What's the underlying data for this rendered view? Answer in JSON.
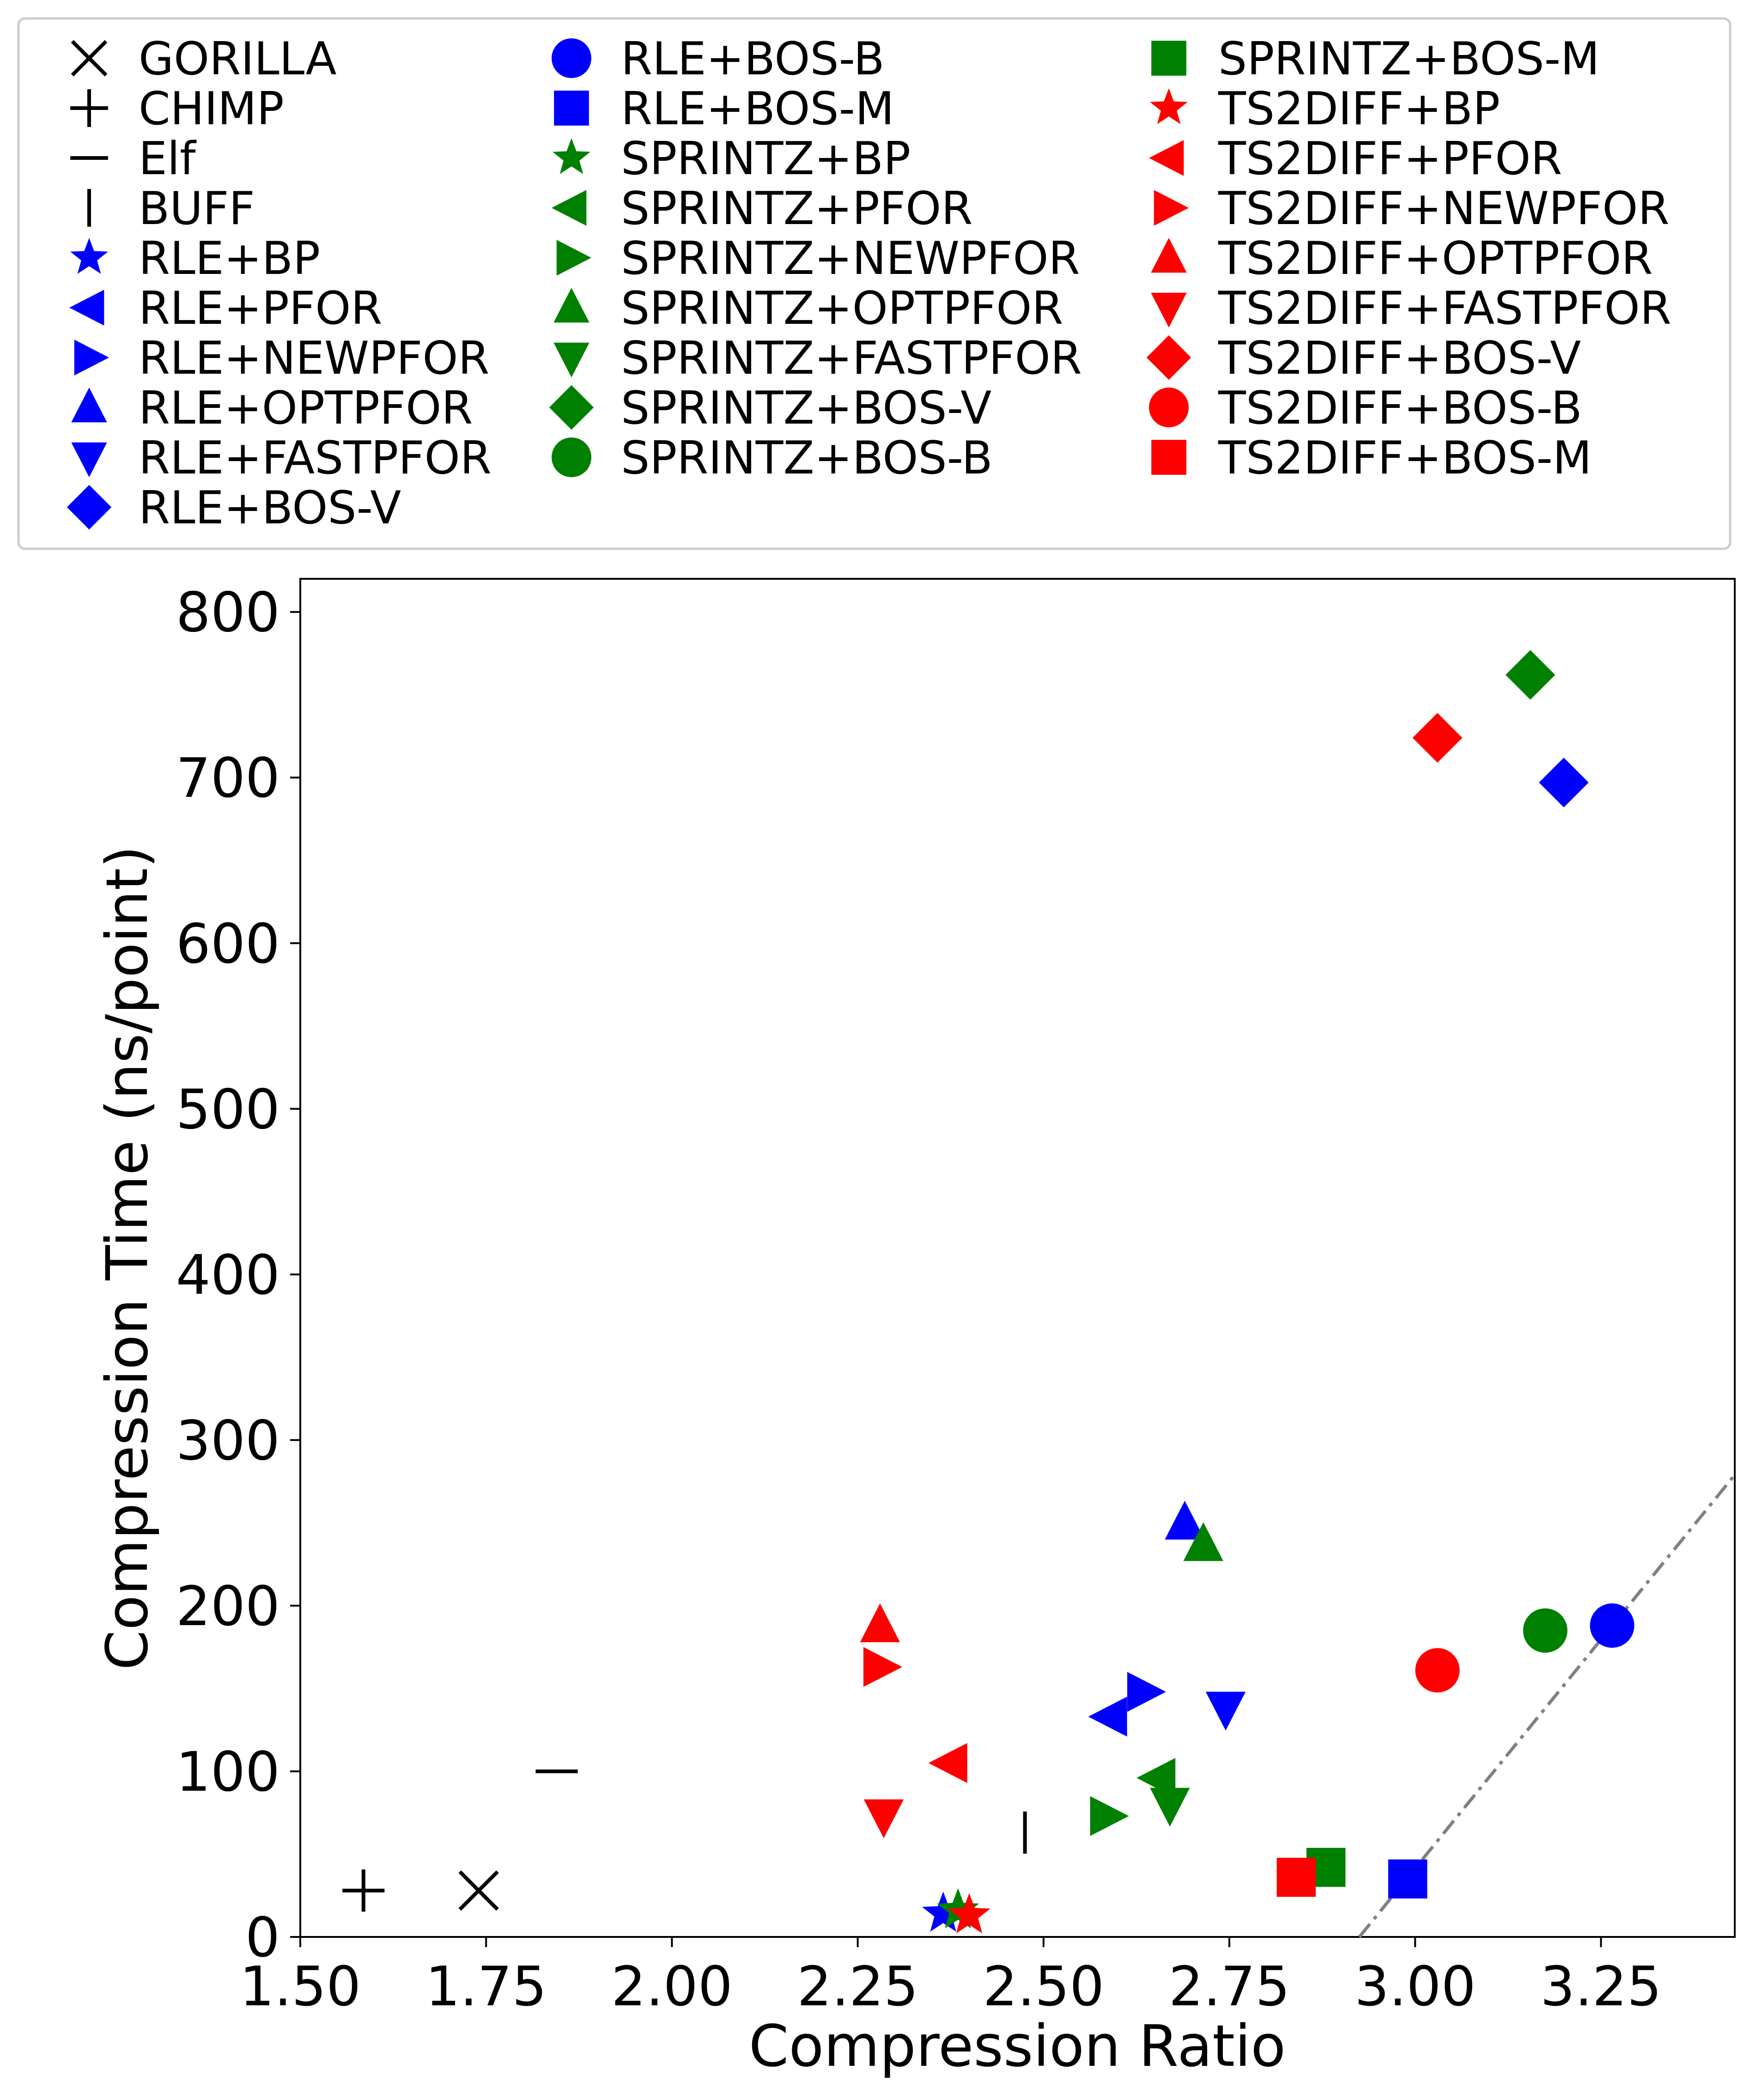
{
  "chart_data": {
    "type": "scatter",
    "title": "",
    "xlabel": "Compression Ratio",
    "ylabel": "Compression Time (ns/point)",
    "xlim": [
      1.5,
      3.43
    ],
    "ylim": [
      0,
      820
    ],
    "xticks": [
      1.5,
      1.75,
      2.0,
      2.25,
      2.5,
      2.75,
      3.0,
      3.25
    ],
    "xtick_labels": [
      "1.50",
      "1.75",
      "2.00",
      "2.25",
      "2.50",
      "2.75",
      "3.00",
      "3.25"
    ],
    "yticks": [
      0,
      100,
      200,
      300,
      400,
      500,
      600,
      700,
      800
    ],
    "ytick_labels": [
      "0",
      "100",
      "200",
      "300",
      "400",
      "500",
      "600",
      "700",
      "800"
    ],
    "grid": false,
    "legend_position": "top",
    "reference_line": {
      "style": "dash-dot",
      "color": "#808080",
      "points": [
        [
          2.925,
          0
        ],
        [
          3.45,
          290
        ]
      ]
    },
    "series": [
      {
        "name": "GORILLA",
        "marker": "x",
        "color": "#000000",
        "points": [
          [
            1.74,
            28
          ]
        ]
      },
      {
        "name": "CHIMP",
        "marker": "plus",
        "color": "#000000",
        "points": [
          [
            1.585,
            28
          ]
        ]
      },
      {
        "name": "Elf",
        "marker": "hline",
        "color": "#000000",
        "points": [
          [
            1.845,
            100
          ]
        ]
      },
      {
        "name": "BUFF",
        "marker": "vline",
        "color": "#000000",
        "points": [
          [
            2.475,
            63
          ]
        ]
      },
      {
        "name": "RLE+BP",
        "marker": "star",
        "color": "#0000ff",
        "points": [
          [
            2.365,
            14
          ]
        ]
      },
      {
        "name": "RLE+PFOR",
        "marker": "tri-left",
        "color": "#0000ff",
        "points": [
          [
            2.59,
            133
          ]
        ]
      },
      {
        "name": "RLE+NEWPFOR",
        "marker": "tri-right",
        "color": "#0000ff",
        "points": [
          [
            2.635,
            148
          ]
        ]
      },
      {
        "name": "RLE+OPTPFOR",
        "marker": "tri-up",
        "color": "#0000ff",
        "points": [
          [
            2.69,
            250
          ]
        ]
      },
      {
        "name": "RLE+FASTPFOR",
        "marker": "tri-down",
        "color": "#0000ff",
        "points": [
          [
            2.745,
            138
          ]
        ]
      },
      {
        "name": "RLE+BOS-V",
        "marker": "diamond",
        "color": "#0000ff",
        "points": [
          [
            3.2,
            697
          ]
        ]
      },
      {
        "name": "RLE+BOS-B",
        "marker": "circle",
        "color": "#0000ff",
        "points": [
          [
            3.265,
            188
          ]
        ]
      },
      {
        "name": "RLE+BOS-M",
        "marker": "square",
        "color": "#0000ff",
        "points": [
          [
            2.99,
            35
          ]
        ]
      },
      {
        "name": "SPRINTZ+BP",
        "marker": "star",
        "color": "#008000",
        "points": [
          [
            2.385,
            16
          ]
        ]
      },
      {
        "name": "SPRINTZ+PFOR",
        "marker": "tri-left",
        "color": "#008000",
        "points": [
          [
            2.655,
            96
          ]
        ]
      },
      {
        "name": "SPRINTZ+NEWPFOR",
        "marker": "tri-right",
        "color": "#008000",
        "points": [
          [
            2.585,
            73
          ]
        ]
      },
      {
        "name": "SPRINTZ+OPTPFOR",
        "marker": "tri-up",
        "color": "#008000",
        "points": [
          [
            2.715,
            237
          ]
        ]
      },
      {
        "name": "SPRINTZ+FASTPFOR",
        "marker": "tri-down",
        "color": "#008000",
        "points": [
          [
            2.67,
            80
          ]
        ]
      },
      {
        "name": "SPRINTZ+BOS-V",
        "marker": "diamond",
        "color": "#008000",
        "points": [
          [
            3.155,
            762
          ]
        ]
      },
      {
        "name": "SPRINTZ+BOS-B",
        "marker": "circle",
        "color": "#008000",
        "points": [
          [
            3.175,
            185
          ]
        ]
      },
      {
        "name": "SPRINTZ+BOS-M",
        "marker": "square",
        "color": "#008000",
        "points": [
          [
            2.88,
            42
          ]
        ]
      },
      {
        "name": "TS2DIFF+BP",
        "marker": "star",
        "color": "#ff0000",
        "points": [
          [
            2.4,
            13
          ]
        ]
      },
      {
        "name": "TS2DIFF+PFOR",
        "marker": "tri-left",
        "color": "#ff0000",
        "points": [
          [
            2.375,
            105
          ]
        ]
      },
      {
        "name": "TS2DIFF+NEWPFOR",
        "marker": "tri-right",
        "color": "#ff0000",
        "points": [
          [
            2.28,
            163
          ]
        ]
      },
      {
        "name": "TS2DIFF+OPTPFOR",
        "marker": "tri-up",
        "color": "#ff0000",
        "points": [
          [
            2.28,
            188
          ]
        ]
      },
      {
        "name": "TS2DIFF+FASTPFOR",
        "marker": "tri-down",
        "color": "#ff0000",
        "points": [
          [
            2.285,
            73
          ]
        ]
      },
      {
        "name": "TS2DIFF+BOS-V",
        "marker": "diamond",
        "color": "#ff0000",
        "points": [
          [
            3.03,
            724
          ]
        ]
      },
      {
        "name": "TS2DIFF+BOS-B",
        "marker": "circle",
        "color": "#ff0000",
        "points": [
          [
            3.03,
            161
          ]
        ]
      },
      {
        "name": "TS2DIFF+BOS-M",
        "marker": "square",
        "color": "#ff0000",
        "points": [
          [
            2.84,
            36
          ]
        ]
      }
    ]
  }
}
